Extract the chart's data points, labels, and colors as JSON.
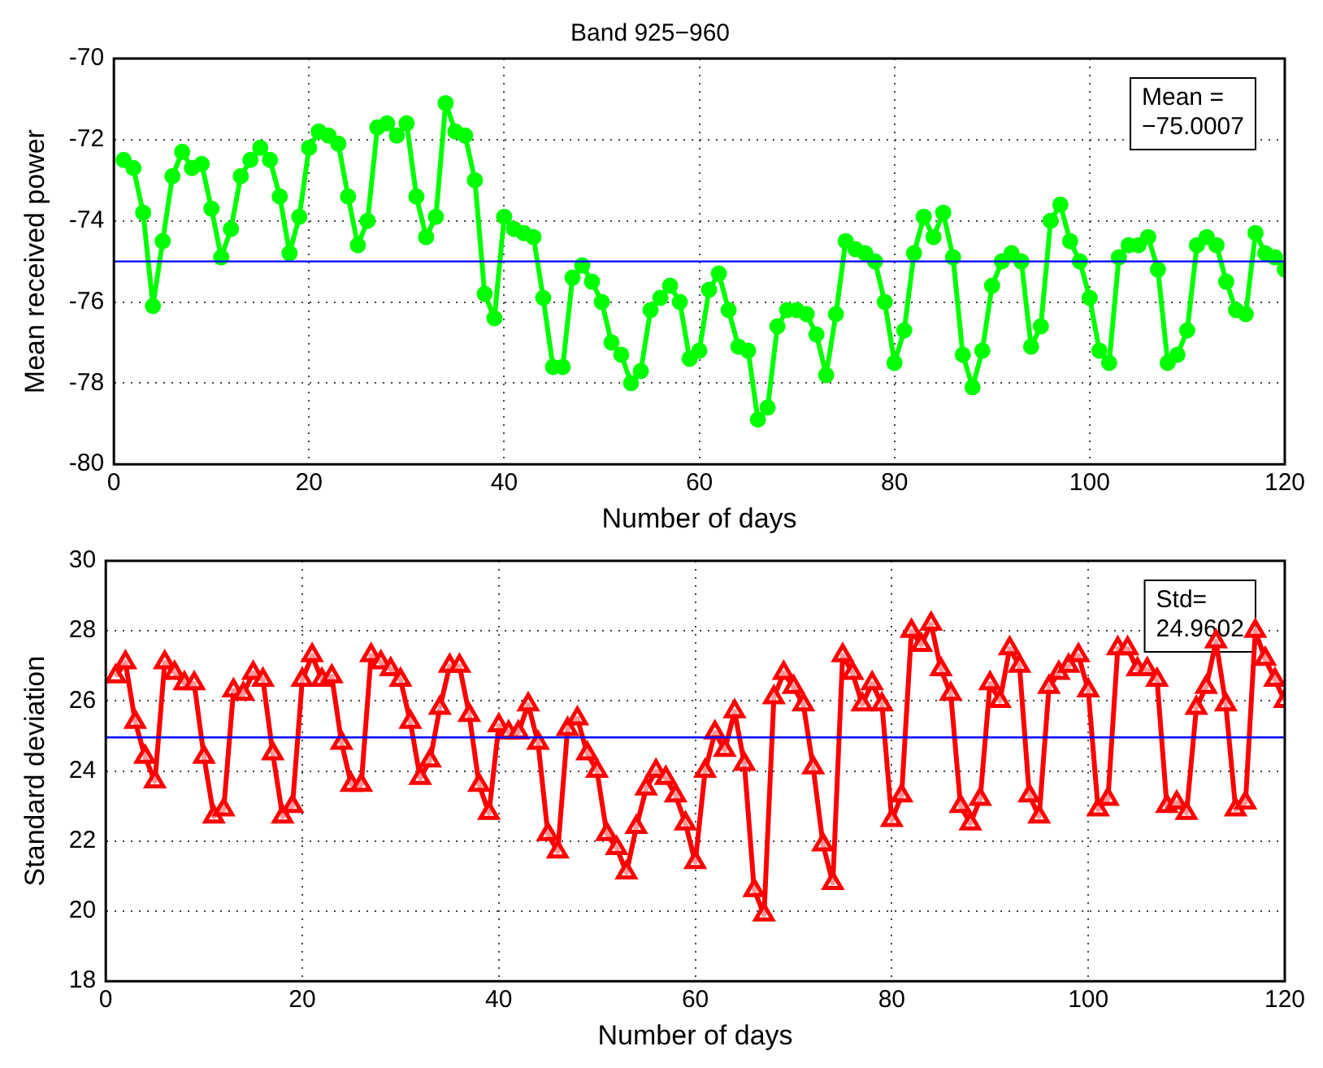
{
  "chart_data": [
    {
      "type": "line",
      "title": "Band 925−960",
      "xlabel": "Number of days",
      "ylabel": "Mean received power",
      "x": [
        1,
        2,
        3,
        4,
        5,
        6,
        7,
        8,
        9,
        10,
        11,
        12,
        13,
        14,
        15,
        16,
        17,
        18,
        19,
        20,
        21,
        22,
        23,
        24,
        25,
        26,
        27,
        28,
        29,
        30,
        31,
        32,
        33,
        34,
        35,
        36,
        37,
        38,
        39,
        40,
        41,
        42,
        43,
        44,
        45,
        46,
        47,
        48,
        49,
        50,
        51,
        52,
        53,
        54,
        55,
        56,
        57,
        58,
        59,
        60,
        61,
        62,
        63,
        64,
        65,
        66,
        67,
        68,
        69,
        70,
        71,
        72,
        73,
        74,
        75,
        76,
        77,
        78,
        79,
        80,
        81,
        82,
        83,
        84,
        85,
        86,
        87,
        88,
        89,
        90,
        91,
        92,
        93,
        94,
        95,
        96,
        97,
        98,
        99,
        100,
        101,
        102,
        103,
        104,
        105,
        106,
        107,
        108,
        109,
        110,
        111,
        112,
        113,
        114,
        115,
        116,
        117,
        118,
        119,
        120
      ],
      "series": [
        {
          "color": "#00ff00",
          "values": [
            -72.5,
            -72.7,
            -73.8,
            -76.1,
            -74.5,
            -72.9,
            -72.3,
            -72.7,
            -72.6,
            -73.7,
            -74.9,
            -74.2,
            -72.9,
            -72.5,
            -72.2,
            -72.5,
            -73.4,
            -74.8,
            -73.9,
            -72.2,
            -71.8,
            -71.9,
            -72.1,
            -73.4,
            -74.6,
            -74.0,
            -71.7,
            -71.6,
            -71.9,
            -71.6,
            -73.4,
            -74.4,
            -73.9,
            -71.1,
            -71.8,
            -71.9,
            -73.0,
            -75.8,
            -76.4,
            -73.9,
            -74.2,
            -74.3,
            -74.4,
            -75.9,
            -77.6,
            -77.6,
            -75.4,
            -75.1,
            -75.5,
            -76.0,
            -77.0,
            -77.3,
            -78.0,
            -77.7,
            -76.2,
            -75.9,
            -75.6,
            -76.0,
            -77.4,
            -77.2,
            -75.7,
            -75.3,
            -76.2,
            -77.1,
            -77.2,
            -78.9,
            -78.6,
            -76.6,
            -76.2,
            -76.2,
            -76.3,
            -76.8,
            -77.8,
            -76.3,
            -74.5,
            -74.7,
            -74.8,
            -75.0,
            -76.0,
            -77.5,
            -76.7,
            -74.8,
            -73.9,
            -74.4,
            -73.8,
            -74.9,
            -77.3,
            -78.1,
            -77.2,
            -75.6,
            -75.0,
            -74.8,
            -75.0,
            -77.1,
            -76.6,
            -74.0,
            -73.6,
            -74.5,
            -75.0,
            -75.9,
            -77.2,
            -77.5,
            -74.9,
            -74.6,
            -74.6,
            -74.4,
            -75.2,
            -77.5,
            -77.3,
            -76.7,
            -74.6,
            -74.4,
            -74.6,
            -75.5,
            -76.2,
            -76.3,
            -74.3,
            -74.8,
            -74.9,
            -75.2
          ]
        }
      ],
      "marker": "circle",
      "line_style": "solid",
      "grid": true,
      "legend": false,
      "xlim": [
        0,
        120
      ],
      "xticks": [
        0,
        20,
        40,
        60,
        80,
        100,
        120
      ],
      "ylim": [
        -80,
        -70
      ],
      "yticks": [
        -80,
        -78,
        -76,
        -74,
        -72,
        -70
      ],
      "ref_lines": [
        {
          "axis": "y",
          "value": -75.0007,
          "color": "#0000ff"
        }
      ],
      "annotations": [
        "Mean =",
        "−75.0007"
      ]
    },
    {
      "type": "line",
      "xlabel": "Number of days",
      "ylabel": "Standard deviation",
      "x": [
        1,
        2,
        3,
        4,
        5,
        6,
        7,
        8,
        9,
        10,
        11,
        12,
        13,
        14,
        15,
        16,
        17,
        18,
        19,
        20,
        21,
        22,
        23,
        24,
        25,
        26,
        27,
        28,
        29,
        30,
        31,
        32,
        33,
        34,
        35,
        36,
        37,
        38,
        39,
        40,
        41,
        42,
        43,
        44,
        45,
        46,
        47,
        48,
        49,
        50,
        51,
        52,
        53,
        54,
        55,
        56,
        57,
        58,
        59,
        60,
        61,
        62,
        63,
        64,
        65,
        66,
        67,
        68,
        69,
        70,
        71,
        72,
        73,
        74,
        75,
        76,
        77,
        78,
        79,
        80,
        81,
        82,
        83,
        84,
        85,
        86,
        87,
        88,
        89,
        90,
        91,
        92,
        93,
        94,
        95,
        96,
        97,
        98,
        99,
        100,
        101,
        102,
        103,
        104,
        105,
        106,
        107,
        108,
        109,
        110,
        111,
        112,
        113,
        114,
        115,
        116,
        117,
        118,
        119,
        120
      ],
      "series": [
        {
          "color": "#ff0000",
          "values": [
            26.7,
            27.1,
            25.4,
            24.4,
            23.7,
            27.1,
            26.8,
            26.5,
            26.5,
            24.4,
            22.7,
            22.9,
            26.3,
            26.2,
            26.8,
            26.6,
            24.5,
            22.7,
            23.0,
            26.6,
            27.3,
            26.6,
            26.7,
            24.8,
            23.6,
            23.6,
            27.3,
            27.1,
            26.9,
            26.6,
            25.4,
            23.8,
            24.3,
            25.8,
            27.0,
            27.0,
            25.6,
            23.6,
            22.8,
            25.3,
            25.1,
            25.1,
            25.9,
            24.8,
            22.2,
            21.7,
            25.2,
            25.5,
            24.5,
            24.0,
            22.2,
            21.8,
            21.1,
            22.4,
            23.5,
            24.0,
            23.8,
            23.3,
            22.5,
            21.4,
            24.0,
            25.1,
            24.6,
            25.7,
            24.2,
            20.6,
            19.9,
            26.1,
            26.8,
            26.4,
            25.9,
            24.1,
            21.9,
            20.8,
            27.3,
            26.8,
            25.9,
            26.5,
            25.9,
            22.6,
            23.3,
            28.0,
            27.6,
            28.2,
            26.9,
            26.2,
            23.0,
            22.5,
            23.2,
            26.5,
            26.0,
            27.5,
            27.0,
            23.3,
            22.7,
            26.4,
            26.8,
            27.0,
            27.3,
            26.3,
            22.9,
            23.2,
            27.5,
            27.5,
            26.9,
            26.9,
            26.6,
            23.0,
            23.1,
            22.8,
            25.8,
            26.4,
            27.7,
            25.9,
            22.9,
            23.1,
            28.0,
            27.2,
            26.6,
            26.0
          ]
        }
      ],
      "marker": "triangle",
      "line_style": "solid",
      "grid": true,
      "legend": false,
      "xlim": [
        0,
        120
      ],
      "xticks": [
        0,
        20,
        40,
        60,
        80,
        100,
        120
      ],
      "ylim": [
        18,
        30
      ],
      "yticks": [
        18,
        20,
        22,
        24,
        26,
        28,
        30
      ],
      "ref_lines": [
        {
          "axis": "y",
          "value": 24.9602,
          "color": "#0000ff"
        }
      ],
      "annotations": [
        "Std=",
        "24.9602"
      ]
    }
  ]
}
